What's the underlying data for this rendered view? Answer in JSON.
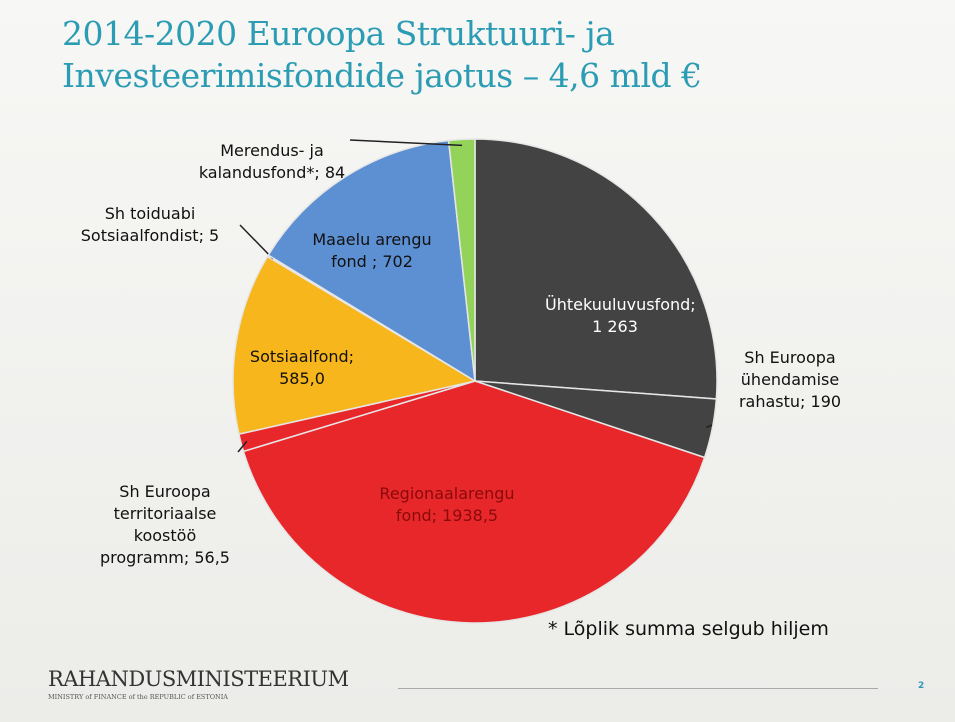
{
  "header": {
    "title_line1": "2014-2020 Euroopa Struktuuri- ja",
    "title_line2": "Investeerimisfondide jaotus – 4,6 mld €"
  },
  "chart_data": {
    "type": "pie",
    "categories": [
      "Ühtekuuluvusfond; 1 263",
      "Sh Euroopa ühendamise rahastu; 190",
      "Regionaalarengu fond; 1938,5",
      "Sh Euroopa territoriaalse koostöö programm; 56,5",
      "Sotsiaalfond; 585,0",
      "Sh toiduabi Sotsiaalfondist; 5",
      "Maaelu arengu fond ; 702",
      "Merendus- ja kalandusfond*; 84"
    ],
    "values": [
      1263,
      190,
      1938.5,
      56.5,
      585.0,
      5,
      702,
      84
    ],
    "colors": [
      "#434343",
      "#434343",
      "#e8272b",
      "#e8272b",
      "#f6b61c",
      "#f6b61c",
      "#5d90d3",
      "#93d35a"
    ]
  },
  "footnote": "* Lõplik summa selgub hiljem",
  "footer": {
    "logo": "RAHANDUSMINISTEERIUM",
    "subtitle": "MINISTRY of FINANCE of the REPUBLIC of ESTONIA",
    "page": "2"
  }
}
